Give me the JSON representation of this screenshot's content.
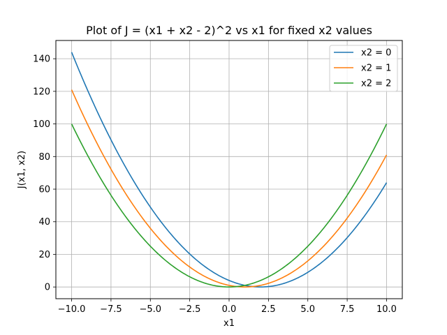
{
  "chart_data": {
    "type": "line",
    "title": "Plot of J = (x1 + x2 - 2)^2 vs x1 for fixed x2 values",
    "xlabel": "x1",
    "ylabel": "J(x1, x2)",
    "xlim": [
      -11.0,
      11.0
    ],
    "ylim": [
      -7.2,
      151.2
    ],
    "xticks": [
      -10.0,
      -7.5,
      -5.0,
      -2.5,
      0.0,
      2.5,
      5.0,
      7.5,
      10.0
    ],
    "xtick_labels": [
      "−10.0",
      "−7.5",
      "−5.0",
      "−2.5",
      "0.0",
      "2.5",
      "5.0",
      "7.5",
      "10.0"
    ],
    "yticks": [
      0,
      20,
      40,
      60,
      80,
      100,
      120,
      140
    ],
    "ytick_labels": [
      "0",
      "20",
      "40",
      "60",
      "80",
      "100",
      "120",
      "140"
    ],
    "grid": true,
    "legend_position": "top-right",
    "x": [
      -10,
      -9,
      -8,
      -7,
      -6,
      -5,
      -4,
      -3,
      -2,
      -1,
      0,
      1,
      2,
      3,
      4,
      5,
      6,
      7,
      8,
      9,
      10
    ],
    "series": [
      {
        "name": "x2 = 0",
        "color": "#1f77b4",
        "values": [
          144,
          121,
          100,
          81,
          64,
          49,
          36,
          25,
          16,
          9,
          4,
          1,
          0,
          1,
          4,
          9,
          16,
          25,
          36,
          49,
          64
        ]
      },
      {
        "name": "x2 = 1",
        "color": "#ff7f0e",
        "values": [
          121,
          100,
          81,
          64,
          49,
          36,
          25,
          16,
          9,
          4,
          1,
          0,
          1,
          4,
          9,
          16,
          25,
          36,
          49,
          64,
          81
        ]
      },
      {
        "name": "x2 = 2",
        "color": "#2ca02c",
        "values": [
          100,
          81,
          64,
          49,
          36,
          25,
          16,
          9,
          4,
          1,
          0,
          1,
          4,
          9,
          16,
          25,
          36,
          49,
          64,
          81,
          100
        ]
      }
    ]
  }
}
